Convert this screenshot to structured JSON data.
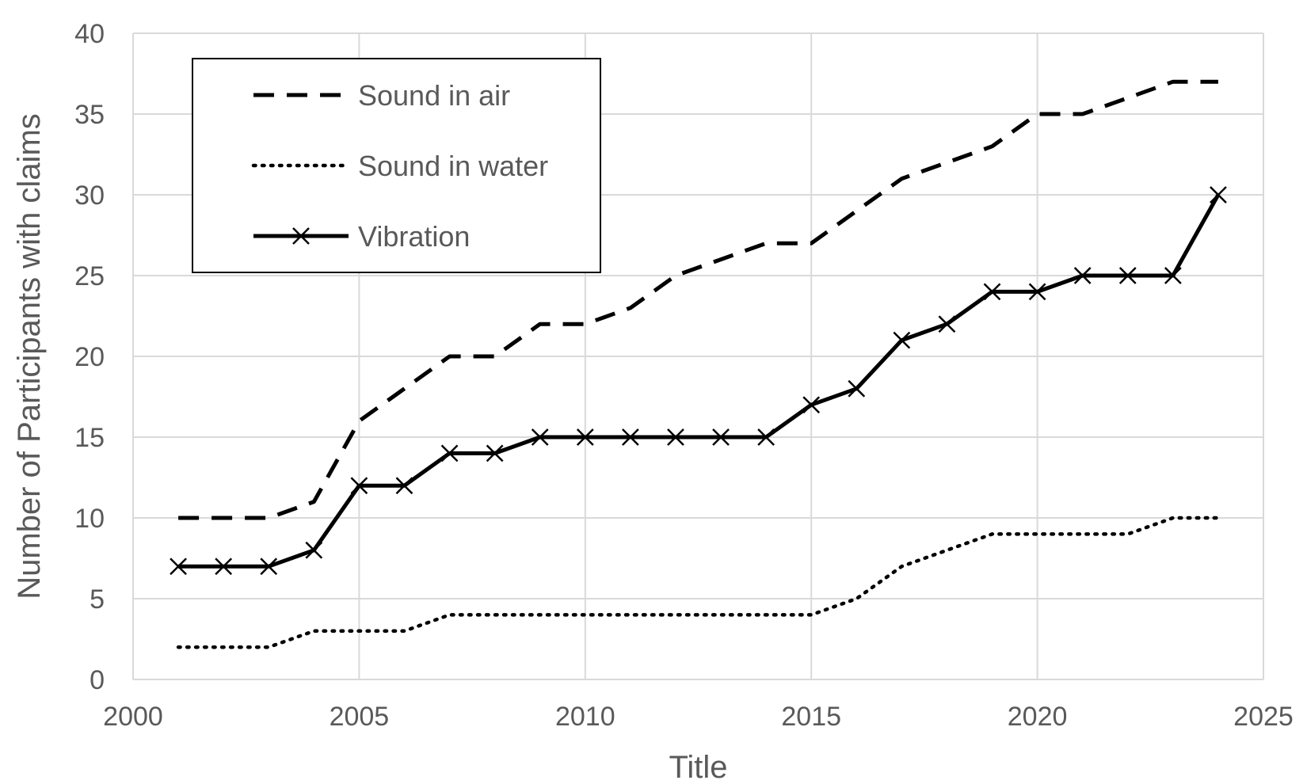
{
  "chart_data": {
    "type": "line",
    "title": "",
    "xlabel": "Title",
    "ylabel": "Number of Participants with claims",
    "xlim": [
      2000,
      2025
    ],
    "ylim": [
      0,
      40
    ],
    "x_ticks": [
      2000,
      2005,
      2010,
      2015,
      2020,
      2025
    ],
    "y_ticks": [
      0,
      5,
      10,
      15,
      20,
      25,
      30,
      35,
      40
    ],
    "grid": true,
    "legend_position": "top-left",
    "x": [
      2001,
      2002,
      2003,
      2004,
      2005,
      2006,
      2007,
      2008,
      2009,
      2010,
      2011,
      2012,
      2013,
      2014,
      2015,
      2016,
      2017,
      2018,
      2019,
      2020,
      2021,
      2022,
      2023,
      2024
    ],
    "series": [
      {
        "name": "Sound in air",
        "line_style": "dashed",
        "marker": "none",
        "values": [
          10,
          10,
          10,
          11,
          16,
          18,
          20,
          20,
          22,
          22,
          23,
          25,
          26,
          27,
          27,
          29,
          31,
          32,
          33,
          35,
          35,
          36,
          37,
          37
        ]
      },
      {
        "name": "Sound in water",
        "line_style": "dotted",
        "marker": "none",
        "values": [
          2,
          2,
          2,
          3,
          3,
          3,
          4,
          4,
          4,
          4,
          4,
          4,
          4,
          4,
          4,
          5,
          7,
          8,
          9,
          9,
          9,
          9,
          10,
          10
        ]
      },
      {
        "name": "Vibration",
        "line_style": "solid",
        "marker": "x",
        "values": [
          7,
          7,
          7,
          8,
          12,
          12,
          14,
          14,
          15,
          15,
          15,
          15,
          15,
          15,
          17,
          18,
          21,
          22,
          24,
          24,
          25,
          25,
          25,
          30
        ]
      }
    ],
    "colors": {
      "line": "#000000",
      "grid": "#d9d9d9",
      "text": "#595959",
      "background": "#ffffff"
    }
  }
}
